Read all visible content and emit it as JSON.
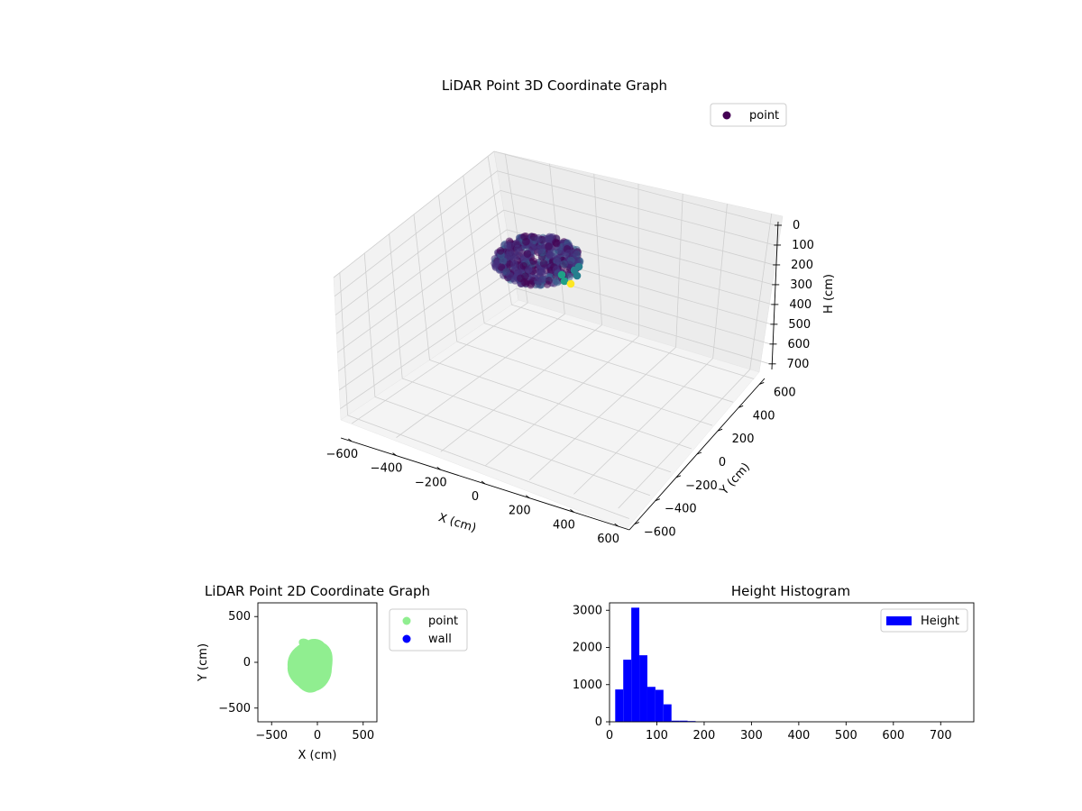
{
  "chart_data": [
    {
      "type": "scatter3d",
      "title": "LiDAR Point 3D Coordinate Graph",
      "xlabel": "X (cm)",
      "ylabel": "Y (cm)",
      "zlabel": "H (cm)",
      "xlim": [
        -650,
        650
      ],
      "ylim": [
        -650,
        650
      ],
      "zlim": [
        0,
        760
      ],
      "z_inverted": true,
      "xticks": [
        "−600",
        "−400",
        "−200",
        "0",
        "200",
        "400",
        "600"
      ],
      "yticks": [
        "−600",
        "−400",
        "−200",
        "0",
        "200",
        "400",
        "600"
      ],
      "zticks": [
        "0",
        "100",
        "200",
        "300",
        "400",
        "500",
        "600",
        "700"
      ],
      "grid": true,
      "legend": {
        "position": "top-right",
        "entries": [
          {
            "label": "point",
            "color": "#440154"
          }
        ]
      },
      "colormap": "viridis",
      "cluster": {
        "x_range": [
          -250,
          130
        ],
        "y_range": [
          -310,
          220
        ],
        "h_range": [
          10,
          180
        ]
      }
    },
    {
      "type": "scatter",
      "title": "LiDAR Point 2D Coordinate Graph",
      "xlabel": "X (cm)",
      "ylabel": "Y (cm)",
      "xlim": [
        -650,
        650
      ],
      "ylim": [
        -650,
        650
      ],
      "xticks": [
        "−500",
        "0",
        "500"
      ],
      "yticks": [
        "−500",
        "0",
        "500"
      ],
      "legend": {
        "position": "outside-right",
        "entries": [
          {
            "label": "point",
            "color": "#90ee90"
          },
          {
            "label": "wall",
            "color": "#0000ff"
          }
        ]
      },
      "series": [
        {
          "name": "point",
          "color": "#90ee90",
          "shape": "blob",
          "x_range": [
            -330,
            140
          ],
          "y_range": [
            -300,
            210
          ]
        },
        {
          "name": "wall",
          "color": "#0000ff",
          "values": []
        }
      ]
    },
    {
      "type": "bar",
      "title": "Height Histogram",
      "xlabel": "",
      "ylabel": "",
      "xlim": [
        0,
        770
      ],
      "ylim": [
        0,
        3200
      ],
      "xticks": [
        "0",
        "100",
        "200",
        "300",
        "400",
        "500",
        "600",
        "700"
      ],
      "yticks": [
        "0",
        "1000",
        "2000",
        "3000"
      ],
      "legend": {
        "position": "top-right",
        "entries": [
          {
            "label": "Height",
            "color": "#0000ff"
          }
        ]
      },
      "color": "#0000ff",
      "bins": [
        [
          12,
          29,
          870
        ],
        [
          29,
          46,
          1670
        ],
        [
          46,
          63,
          3070
        ],
        [
          63,
          80,
          1790
        ],
        [
          80,
          97,
          940
        ],
        [
          97,
          114,
          860
        ],
        [
          114,
          131,
          470
        ],
        [
          131,
          148,
          30
        ],
        [
          148,
          165,
          30
        ],
        [
          165,
          182,
          20
        ]
      ]
    }
  ]
}
